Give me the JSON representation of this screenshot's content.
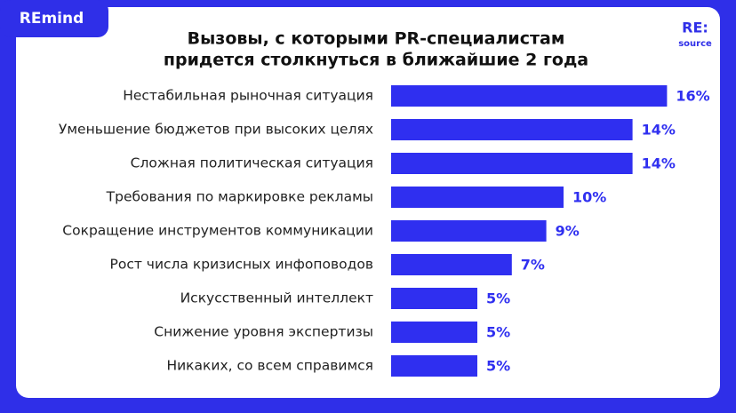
{
  "brand": "REmind",
  "logo": [
    "RE:",
    "source"
  ],
  "chart_data": {
    "type": "bar",
    "orientation": "horizontal",
    "title": [
      "Вызовы, с которыми PR-специалистам",
      "придется столкнуться в ближайшие 2 года"
    ],
    "categories": [
      "Нестабильная рыночная ситуация",
      "Уменьшение бюджетов при высоких целях",
      "Сложная политическая ситуация",
      "Требования по маркировке рекламы",
      "Сокращение инструментов коммуникации",
      "Рост числа кризисных инфоповодов",
      "Искусственный интеллект",
      "Снижение уровня экспертизы",
      "Никаких, со всем справимся"
    ],
    "values": [
      16,
      14,
      14,
      10,
      9,
      7,
      5,
      5,
      5
    ],
    "value_labels": [
      "16%",
      "14%",
      "14%",
      "10%",
      "9%",
      "7%",
      "5%",
      "5%",
      "5%"
    ],
    "color": "#2f2ff0"
  }
}
